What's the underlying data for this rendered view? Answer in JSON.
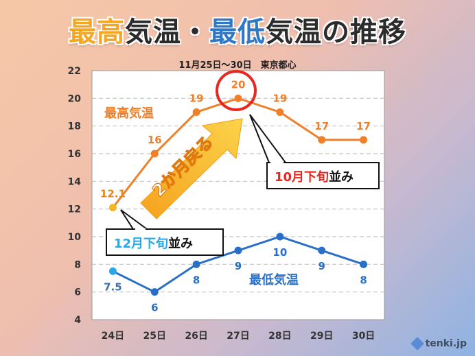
{
  "title": {
    "part1": "最高",
    "part2": "気温・",
    "part3": "最低",
    "part4": "気温の推移"
  },
  "subtitle": "11月25日～30日　東京都心",
  "colors": {
    "high": "#f07f2a",
    "low": "#2a6fc6",
    "high_first": "#f5b81f",
    "low_first": "#28a8e8",
    "title_high": "#f5a623",
    "title_low": "#2f78c8",
    "title_dark": "#2b2b2b",
    "highlight": "#e8271f",
    "arrow": "#f8a51c"
  },
  "chart_data": {
    "type": "line",
    "categories": [
      "24日",
      "25日",
      "26日",
      "27日",
      "28日",
      "29日",
      "30日"
    ],
    "series": [
      {
        "name": "最高気温",
        "values": [
          12.1,
          16,
          19,
          20,
          19,
          17,
          17
        ],
        "labels": [
          "12.1",
          "16",
          "19",
          "20",
          "19",
          "17",
          "17"
        ]
      },
      {
        "name": "最低気温",
        "values": [
          7.5,
          6,
          8,
          9,
          10,
          9,
          8
        ],
        "labels": [
          "7.5",
          "6",
          "8",
          "9",
          "10",
          "9",
          "8"
        ]
      }
    ],
    "ylim": [
      4,
      22
    ],
    "yticks": [
      "4",
      "6",
      "8",
      "10",
      "12",
      "14",
      "16",
      "18",
      "20",
      "22"
    ],
    "grid": true
  },
  "annotations": {
    "oct_callout_part1": "10月下旬",
    "oct_callout_part2": "並み",
    "dec_callout_part1": "12月下旬",
    "dec_callout_part2": "並み",
    "arrow_text": "2か月戻る"
  },
  "logo": "tenki.jp"
}
